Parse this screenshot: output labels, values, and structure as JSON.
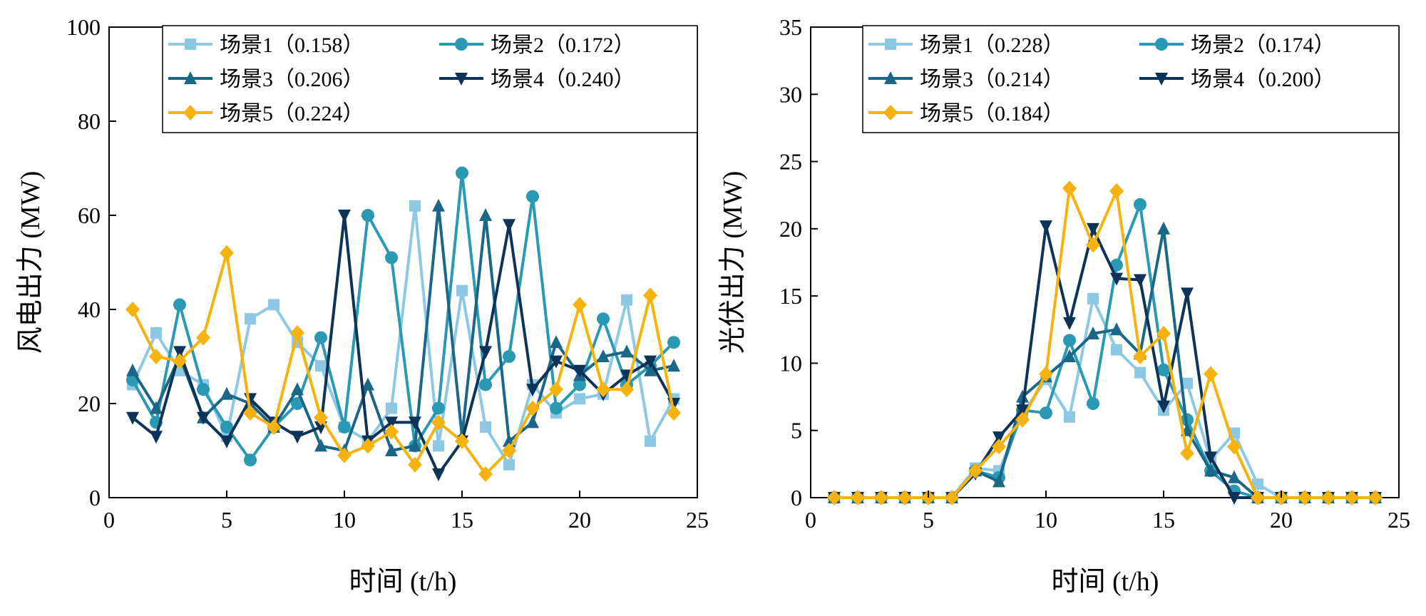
{
  "colors": [
    "#8dc9e4",
    "#2a99b3",
    "#1a6788",
    "#0d3458",
    "#f6b20f"
  ],
  "markers": [
    "square",
    "circle",
    "triangle-up",
    "triangle-down",
    "diamond"
  ],
  "chart_data": [
    {
      "type": "line",
      "title": "",
      "xlabel": "时间 (t/h)",
      "ylabel": "风电出力 (MW)",
      "xlim": [
        0,
        25
      ],
      "ylim": [
        0,
        100
      ],
      "xticks": [
        0,
        5,
        10,
        15,
        20,
        25
      ],
      "yticks": [
        0,
        20,
        40,
        60,
        80,
        100
      ],
      "x": [
        1,
        2,
        3,
        4,
        5,
        6,
        7,
        8,
        9,
        10,
        11,
        12,
        13,
        14,
        15,
        16,
        17,
        18,
        19,
        20,
        21,
        22,
        23,
        24
      ],
      "legend_position": "top",
      "series": [
        {
          "name": "场景1（0.158）",
          "values": [
            24,
            35,
            27,
            24,
            13,
            38,
            41,
            33,
            28,
            15,
            12,
            19,
            62,
            11,
            44,
            15,
            7,
            24,
            18,
            21,
            22,
            42,
            12,
            21
          ]
        },
        {
          "name": "场景2（0.172）",
          "values": [
            25,
            16,
            41,
            23,
            15,
            8,
            15,
            20,
            34,
            15,
            60,
            51,
            11,
            19,
            69,
            24,
            30,
            64,
            19,
            24,
            38,
            24,
            28,
            33
          ]
        },
        {
          "name": "场景3（0.206）",
          "values": [
            27,
            19,
            30,
            17,
            22,
            20,
            15,
            23,
            11,
            10,
            24,
            10,
            11,
            62,
            13,
            60,
            12,
            16,
            33,
            26,
            30,
            31,
            27,
            28
          ]
        },
        {
          "name": "场景4（0.240）",
          "values": [
            17,
            13,
            31,
            17,
            12,
            21,
            16,
            13,
            15,
            60,
            12,
            16,
            16,
            5,
            12,
            31,
            58,
            23,
            29,
            27,
            22,
            26,
            29,
            20
          ]
        },
        {
          "name": "场景5（0.224）",
          "values": [
            40,
            30,
            29,
            34,
            52,
            18,
            15,
            35,
            17,
            9,
            11,
            14,
            7,
            16,
            12,
            5,
            10,
            19,
            23,
            41,
            23,
            23,
            43,
            18
          ]
        }
      ]
    },
    {
      "type": "line",
      "title": "",
      "xlabel": "时间 (t/h)",
      "ylabel": "光伏出力 (MW)",
      "xlim": [
        0,
        25
      ],
      "ylim": [
        0,
        35
      ],
      "xticks": [
        0,
        5,
        10,
        15,
        20,
        25
      ],
      "yticks": [
        0,
        5,
        10,
        15,
        20,
        25,
        30,
        35
      ],
      "x": [
        1,
        2,
        3,
        4,
        5,
        6,
        7,
        8,
        9,
        10,
        11,
        12,
        13,
        14,
        15,
        16,
        17,
        18,
        19,
        20,
        21,
        22,
        23,
        24
      ],
      "legend_position": "top",
      "series": [
        {
          "name": "场景1（0.228）",
          "values": [
            0,
            0,
            0,
            0,
            0,
            0,
            2.2,
            2.0,
            6.2,
            8.8,
            6.0,
            14.8,
            11.0,
            9.3,
            6.5,
            8.5,
            2.8,
            4.8,
            1.0,
            0,
            0,
            0,
            0,
            0
          ]
        },
        {
          "name": "场景2（0.174）",
          "values": [
            0,
            0,
            0,
            0,
            0,
            0,
            2.0,
            1.5,
            6.5,
            6.3,
            11.7,
            7.0,
            17.3,
            21.8,
            9.5,
            5.8,
            2.0,
            0.5,
            0,
            0,
            0,
            0,
            0,
            0
          ]
        },
        {
          "name": "场景3（0.214）",
          "values": [
            0,
            0,
            0,
            0,
            0,
            0,
            2.0,
            1.2,
            7.5,
            9.0,
            10.5,
            12.2,
            12.5,
            10.7,
            20.0,
            5.0,
            2.0,
            1.5,
            0,
            0,
            0,
            0,
            0,
            0
          ]
        },
        {
          "name": "场景4（0.200）",
          "values": [
            0,
            0,
            0,
            0,
            0,
            0,
            1.8,
            4.5,
            6.5,
            20.2,
            13.0,
            20.0,
            16.3,
            16.2,
            6.8,
            15.2,
            3.0,
            0,
            0,
            0,
            0,
            0,
            0,
            0
          ]
        },
        {
          "name": "场景5（0.184）",
          "values": [
            0,
            0,
            0,
            0,
            0,
            0,
            2.0,
            3.8,
            5.8,
            9.2,
            23.0,
            18.8,
            22.8,
            10.5,
            12.2,
            3.3,
            9.2,
            3.8,
            0,
            0,
            0,
            0,
            0,
            0
          ]
        }
      ]
    }
  ]
}
